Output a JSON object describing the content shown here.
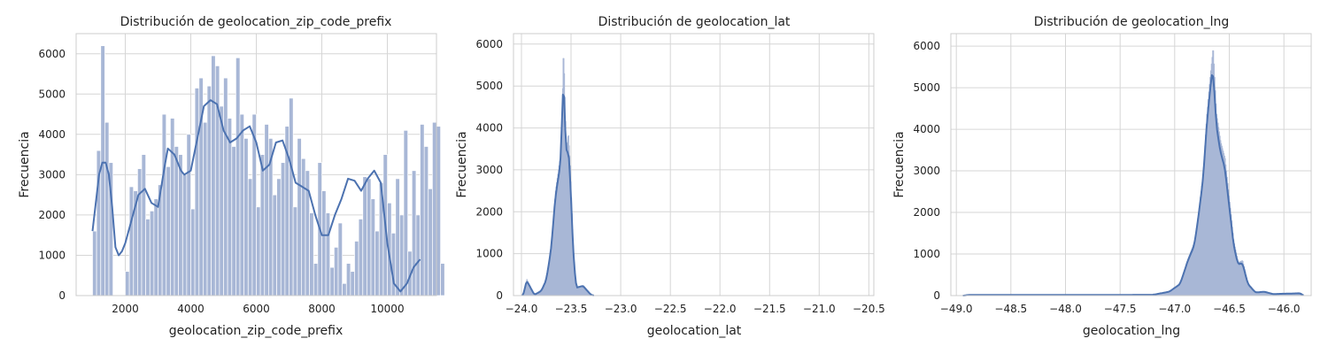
{
  "colors": {
    "bar_fill": "#a8b7d6",
    "bar_edge": "#ffffff",
    "kde": "#4c72b0",
    "grid": "#d6d6d6",
    "frame": "#cccccc"
  },
  "chart_data": [
    {
      "type": "bar",
      "title": "Distribución de geolocation_zip_code_prefix",
      "xlabel": "geolocation_zip_code_prefix",
      "ylabel": "Frecuencia",
      "xlim": [
        500,
        11500
      ],
      "ylim": [
        0,
        6500
      ],
      "xticks": [
        2000,
        4000,
        6000,
        8000,
        10000
      ],
      "yticks": [
        0,
        1000,
        2000,
        3000,
        4000,
        5000,
        6000
      ],
      "grid": true,
      "bins": {
        "start": 1000,
        "width": 125,
        "counts": [
          1600,
          3600,
          6200,
          4300,
          3300,
          0,
          0,
          0,
          600,
          2700,
          2600,
          3150,
          3500,
          1900,
          2100,
          2400,
          2750,
          4500,
          3200,
          4400,
          3700,
          3500,
          3000,
          4000,
          2150,
          5150,
          5400,
          4300,
          5200,
          5950,
          5700,
          4700,
          5400,
          4400,
          3700,
          5900,
          4500,
          3900,
          2900,
          4500,
          2200,
          3500,
          4250,
          3900,
          2500,
          2900,
          3300,
          4200,
          4900,
          2200,
          3900,
          3400,
          3100,
          2050,
          800,
          3300,
          2600,
          2050,
          700,
          1200,
          1800,
          300,
          800,
          600,
          1350,
          1900,
          2950,
          2900,
          2400,
          1600,
          2800,
          3500,
          2300,
          1550,
          2900,
          2000,
          4100,
          1100,
          3100,
          2000,
          3450,
          3700,
          2650,
          4300,
          4200,
          800
        ],
        "extra": [
          {
            "x": 11000,
            "count": 4250
          }
        ]
      },
      "kde": {
        "x": [
          1000,
          1100,
          1200,
          1300,
          1400,
          1500,
          1600,
          1700,
          1800,
          1900,
          2000,
          2200,
          2400,
          2600,
          2800,
          3000,
          3200,
          3300,
          3500,
          3700,
          3800,
          4000,
          4200,
          4400,
          4600,
          4800,
          5000,
          5200,
          5400,
          5600,
          5800,
          6000,
          6200,
          6400,
          6600,
          6800,
          7000,
          7200,
          7400,
          7600,
          7800,
          8000,
          8200,
          8400,
          8600,
          8800,
          9000,
          9200,
          9400,
          9600,
          9800,
          10000,
          10200,
          10400,
          10600,
          10800,
          11000
        ],
        "y": [
          1600,
          2300,
          3000,
          3300,
          3300,
          3000,
          2200,
          1200,
          1000,
          1100,
          1300,
          1900,
          2500,
          2650,
          2300,
          2200,
          3200,
          3650,
          3500,
          3100,
          3000,
          3100,
          3900,
          4700,
          4850,
          4750,
          4100,
          3800,
          3900,
          4100,
          4200,
          3800,
          3100,
          3250,
          3800,
          3850,
          3400,
          2800,
          2700,
          2600,
          2000,
          1500,
          1500,
          2000,
          2400,
          2900,
          2850,
          2600,
          2900,
          3100,
          2800,
          1300,
          300,
          100,
          300,
          700,
          900
        ]
      }
    },
    {
      "type": "bar",
      "title": "Distribución de geolocation_lat",
      "xlabel": "geolocation_lat",
      "ylabel": "Frecuencia",
      "xlim": [
        -24.08,
        -20.45
      ],
      "ylim": [
        0,
        6250
      ],
      "xticks": [
        -24.0,
        -23.5,
        -23.0,
        -22.5,
        -22.0,
        -21.5,
        -21.0,
        -20.5
      ],
      "xticklabels": [
        "−24.0",
        "−23.5",
        "−23.0",
        "−22.5",
        "−22.0",
        "−21.5",
        "−21.0",
        "−20.5"
      ],
      "yticks": [
        0,
        1000,
        2000,
        3000,
        4000,
        5000,
        6000
      ],
      "grid": true,
      "peaks": [
        {
          "x": -23.95,
          "peak": 400
        },
        {
          "x": -23.87,
          "peak": 20
        },
        {
          "x": -23.8,
          "peak": 120
        },
        {
          "x": -23.75,
          "peak": 400
        },
        {
          "x": -23.7,
          "peak": 1200
        },
        {
          "x": -23.66,
          "peak": 2500
        },
        {
          "x": -23.63,
          "peak": 3000
        },
        {
          "x": -23.6,
          "peak": 3500
        },
        {
          "x": -23.58,
          "peak": 5900
        },
        {
          "x": -23.57,
          "peak": 5300
        },
        {
          "x": -23.55,
          "peak": 3400
        },
        {
          "x": -23.53,
          "peak": 3900
        },
        {
          "x": -23.51,
          "peak": 3100
        },
        {
          "x": -23.48,
          "peak": 1200
        },
        {
          "x": -23.45,
          "peak": 200
        },
        {
          "x": -23.38,
          "peak": 250
        },
        {
          "x": -23.3,
          "peak": 20
        }
      ]
    },
    {
      "type": "bar",
      "title": "Distribución de geolocation_lng",
      "xlabel": "geolocation_lng",
      "ylabel": "Frecuencia",
      "xlim": [
        -49.05,
        -45.75
      ],
      "ylim": [
        0,
        6300
      ],
      "xticks": [
        -49.0,
        -48.5,
        -48.0,
        -47.5,
        -47.0,
        -46.5,
        -46.0
      ],
      "xticklabels": [
        "−49.0",
        "−48.5",
        "−48.0",
        "−47.5",
        "−47.0",
        "−46.5",
        "−46.0"
      ],
      "yticks": [
        0,
        1000,
        2000,
        3000,
        4000,
        5000,
        6000
      ],
      "grid": true,
      "peaks": [
        {
          "x": -48.9,
          "peak": 15
        },
        {
          "x": -47.2,
          "peak": 20
        },
        {
          "x": -47.05,
          "peak": 100
        },
        {
          "x": -46.95,
          "peak": 300
        },
        {
          "x": -46.88,
          "peak": 900
        },
        {
          "x": -46.82,
          "peak": 1300
        },
        {
          "x": -46.78,
          "peak": 2100
        },
        {
          "x": -46.74,
          "peak": 3000
        },
        {
          "x": -46.71,
          "peak": 4300
        },
        {
          "x": -46.68,
          "peak": 5200
        },
        {
          "x": -46.65,
          "peak": 6000
        },
        {
          "x": -46.62,
          "peak": 4400
        },
        {
          "x": -46.58,
          "peak": 3700
        },
        {
          "x": -46.54,
          "peak": 3300
        },
        {
          "x": -46.5,
          "peak": 2300
        },
        {
          "x": -46.46,
          "peak": 1300
        },
        {
          "x": -46.42,
          "peak": 800
        },
        {
          "x": -46.38,
          "peak": 850
        },
        {
          "x": -46.33,
          "peak": 300
        },
        {
          "x": -46.26,
          "peak": 80
        },
        {
          "x": -46.18,
          "peak": 100
        },
        {
          "x": -46.1,
          "peak": 40
        },
        {
          "x": -45.85,
          "peak": 60
        }
      ]
    }
  ]
}
